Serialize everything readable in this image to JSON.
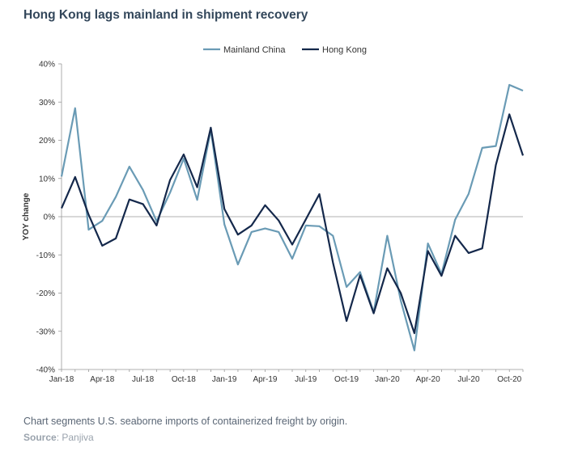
{
  "title": "Hong Kong lags mainland in shipment recovery",
  "caption": "Chart segments U.S. seaborne imports of containerized freight by origin.",
  "source_label": "Source",
  "source_value": ": Panjiva",
  "colors": {
    "mainland": "#6a9bb5",
    "hongkong": "#14284b",
    "axis": "#999999"
  },
  "chart_data": {
    "type": "line",
    "ylabel": "YOY change",
    "ylim": [
      -40,
      40
    ],
    "yticks": [
      -40,
      -30,
      -20,
      -10,
      0,
      10,
      20,
      30,
      40
    ],
    "ytick_labels": [
      "-40%",
      "-30%",
      "-20%",
      "-10%",
      "0%",
      "10%",
      "20%",
      "30%",
      "40%"
    ],
    "x_tick_labels": [
      "Jan-18",
      "Apr-18",
      "Jul-18",
      "Oct-18",
      "Jan-19",
      "Apr-19",
      "Jul-19",
      "Oct-19",
      "Jan-20",
      "Apr-20",
      "Jul-20",
      "Oct-20"
    ],
    "x_tick_index": [
      0,
      3,
      6,
      9,
      12,
      15,
      18,
      21,
      24,
      27,
      30,
      33
    ],
    "legend": "top-center",
    "series": [
      {
        "name": "Mainland China",
        "values": [
          10.5,
          28.4,
          -3.4,
          -1.1,
          5.2,
          13.1,
          7.0,
          -1.2,
          6.3,
          15.2,
          4.4,
          22.7,
          -2.0,
          -12.5,
          -4.0,
          -3.1,
          -4.0,
          -11.0,
          -2.3,
          -2.5,
          -5.0,
          -18.4,
          -14.5,
          -25.0,
          -5.0,
          -22.0,
          -35.0,
          -7.0,
          -15.0,
          -0.8,
          6.0,
          18.0,
          18.5,
          34.5,
          33.0
        ]
      },
      {
        "name": "Hong Kong",
        "values": [
          2.2,
          10.4,
          0.5,
          -7.6,
          -5.7,
          4.5,
          3.3,
          -2.3,
          9.6,
          16.3,
          7.7,
          23.3,
          2.0,
          -4.7,
          -2.3,
          3.0,
          -1.0,
          -7.3,
          -0.7,
          5.9,
          -12.0,
          -27.3,
          -15.3,
          -25.3,
          -13.5,
          -20.0,
          -30.5,
          -9.0,
          -15.5,
          -5.0,
          -9.5,
          -8.3,
          13.5,
          26.8,
          16.0
        ]
      }
    ]
  }
}
